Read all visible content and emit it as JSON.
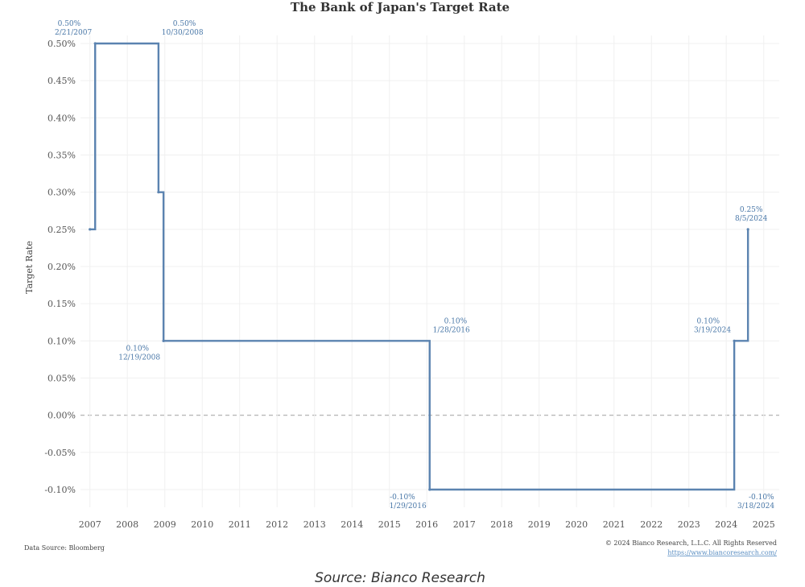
{
  "chart_data": {
    "type": "line",
    "title": "The Bank of Japan's Target Rate",
    "ylabel": "Target Rate",
    "xlabel": "",
    "y_ticks": [
      "0.50%",
      "0.45%",
      "0.40%",
      "0.35%",
      "0.30%",
      "0.25%",
      "0.20%",
      "0.15%",
      "0.10%",
      "0.05%",
      "0.00%",
      "-0.05%",
      "-0.10%"
    ],
    "x_ticks": [
      "2007",
      "2008",
      "2009",
      "2010",
      "2011",
      "2012",
      "2013",
      "2014",
      "2015",
      "2016",
      "2017",
      "2018",
      "2019",
      "2020",
      "2021",
      "2022",
      "2023",
      "2024",
      "2025"
    ],
    "ylim": [
      -0.1,
      0.5
    ],
    "xlim": [
      "2006-10-01",
      "2025-06-01"
    ],
    "grid": true,
    "line_style": "step",
    "series": [
      {
        "color": "#5b83b0",
        "points": [
          {
            "date": "2007-01-01",
            "value": 0.25
          },
          {
            "date": "2007-02-21",
            "value": 0.5
          },
          {
            "date": "2008-10-31",
            "value": 0.3
          },
          {
            "date": "2008-12-19",
            "value": 0.1
          },
          {
            "date": "2016-01-29",
            "value": -0.1
          },
          {
            "date": "2024-03-19",
            "value": 0.1
          },
          {
            "date": "2024-07-31",
            "value": 0.25
          }
        ]
      }
    ],
    "annotations": [
      {
        "value": "0.50%",
        "date": "2/21/2007",
        "at": "2007-02-21",
        "y": 0.5,
        "pos": "above-left"
      },
      {
        "value": "0.50%",
        "date": "10/30/2008",
        "at": "2008-10-30",
        "y": 0.5,
        "pos": "above-right"
      },
      {
        "value": "0.10%",
        "date": "12/19/2008",
        "at": "2008-12-19",
        "y": 0.1,
        "pos": "below-left"
      },
      {
        "value": "0.10%",
        "date": "1/28/2016",
        "at": "2016-01-28",
        "y": 0.1,
        "pos": "above-right"
      },
      {
        "value": "-0.10%",
        "date": "1/29/2016",
        "at": "2016-01-29",
        "y": -0.1,
        "pos": "below-left"
      },
      {
        "value": "0.10%",
        "date": "3/19/2024",
        "at": "2024-03-19",
        "y": 0.1,
        "pos": "above-left"
      },
      {
        "value": "-0.10%",
        "date": "3/18/2024",
        "at": "2024-03-18",
        "y": -0.1,
        "pos": "below-right"
      },
      {
        "value": "0.25%",
        "date": "8/5/2024",
        "at": "2024-07-31",
        "y": 0.25,
        "pos": "above"
      }
    ]
  },
  "footer": {
    "data_source": "Data Source: Bloomberg",
    "copyright": "© 2024 Bianco Research, L.L.C. All Rights Reserved",
    "url": "https://www.biancoresearch.com/"
  },
  "caption": "Source: Bianco Research",
  "colors": {
    "line": "#5b83b0",
    "annotation": "#4a78a8",
    "grid": "#f0f0f0",
    "zero_line": "#aaaaaa"
  }
}
